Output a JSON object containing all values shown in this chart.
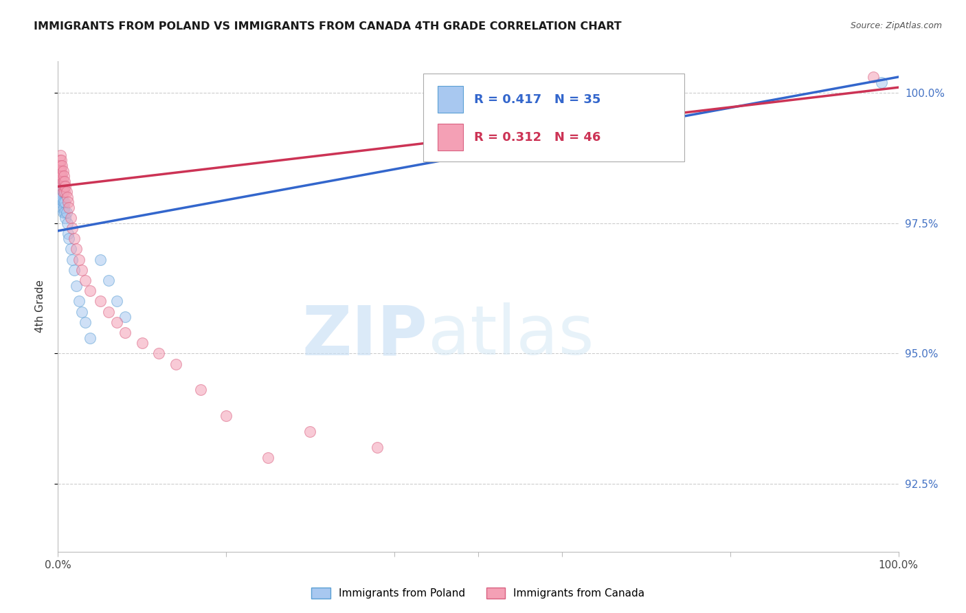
{
  "title": "IMMIGRANTS FROM POLAND VS IMMIGRANTS FROM CANADA 4TH GRADE CORRELATION CHART",
  "source": "Source: ZipAtlas.com",
  "ylabel": "4th Grade",
  "xmin": 0.0,
  "xmax": 1.0,
  "ymin": 0.912,
  "ymax": 1.006,
  "yticks": [
    0.925,
    0.95,
    0.975,
    1.0
  ],
  "ytick_labels": [
    "92.5%",
    "95.0%",
    "97.5%",
    "100.0%"
  ],
  "right_axis_color": "#4472c4",
  "poland_color": "#a8c8f0",
  "poland_edge_color": "#5a9fd4",
  "canada_color": "#f4a0b5",
  "canada_edge_color": "#d96080",
  "poland_line_color": "#3366cc",
  "canada_line_color": "#cc3355",
  "legend_poland_label": "Immigrants from Poland",
  "legend_canada_label": "Immigrants from Canada",
  "poland_R": 0.417,
  "poland_N": 35,
  "canada_R": 0.312,
  "canada_N": 46,
  "watermark_zip": "ZIP",
  "watermark_atlas": "atlas",
  "grid_color": "#cccccc",
  "bg_color": "#ffffff",
  "marker_size": 130,
  "marker_alpha": 0.55,
  "line_width": 2.5,
  "poland_x": [
    0.001,
    0.001,
    0.002,
    0.002,
    0.003,
    0.003,
    0.003,
    0.004,
    0.004,
    0.005,
    0.005,
    0.006,
    0.006,
    0.006,
    0.007,
    0.008,
    0.008,
    0.009,
    0.01,
    0.011,
    0.012,
    0.013,
    0.015,
    0.017,
    0.019,
    0.022,
    0.025,
    0.028,
    0.032,
    0.038,
    0.05,
    0.06,
    0.07,
    0.08,
    0.98
  ],
  "poland_y": [
    0.981,
    0.979,
    0.983,
    0.98,
    0.984,
    0.982,
    0.98,
    0.981,
    0.979,
    0.98,
    0.978,
    0.981,
    0.979,
    0.977,
    0.978,
    0.979,
    0.977,
    0.976,
    0.977,
    0.975,
    0.973,
    0.972,
    0.97,
    0.968,
    0.966,
    0.963,
    0.96,
    0.958,
    0.956,
    0.953,
    0.968,
    0.964,
    0.96,
    0.957,
    1.002
  ],
  "poland_line_x0": 0.0,
  "poland_line_y0": 0.9735,
  "poland_line_x1": 1.0,
  "poland_line_y1": 1.003,
  "canada_x": [
    0.001,
    0.001,
    0.002,
    0.002,
    0.003,
    0.003,
    0.003,
    0.004,
    0.004,
    0.004,
    0.005,
    0.005,
    0.005,
    0.006,
    0.006,
    0.006,
    0.007,
    0.007,
    0.008,
    0.008,
    0.009,
    0.01,
    0.011,
    0.012,
    0.013,
    0.015,
    0.017,
    0.019,
    0.022,
    0.025,
    0.028,
    0.032,
    0.038,
    0.05,
    0.06,
    0.07,
    0.08,
    0.1,
    0.12,
    0.14,
    0.17,
    0.2,
    0.25,
    0.3,
    0.38,
    0.97
  ],
  "canada_y": [
    0.986,
    0.984,
    0.987,
    0.985,
    0.988,
    0.986,
    0.984,
    0.987,
    0.985,
    0.983,
    0.986,
    0.984,
    0.982,
    0.985,
    0.983,
    0.981,
    0.984,
    0.982,
    0.983,
    0.981,
    0.982,
    0.981,
    0.98,
    0.979,
    0.978,
    0.976,
    0.974,
    0.972,
    0.97,
    0.968,
    0.966,
    0.964,
    0.962,
    0.96,
    0.958,
    0.956,
    0.954,
    0.952,
    0.95,
    0.948,
    0.943,
    0.938,
    0.93,
    0.935,
    0.932,
    1.003
  ],
  "canada_line_x0": 0.0,
  "canada_line_y0": 0.982,
  "canada_line_x1": 1.0,
  "canada_line_y1": 1.001
}
